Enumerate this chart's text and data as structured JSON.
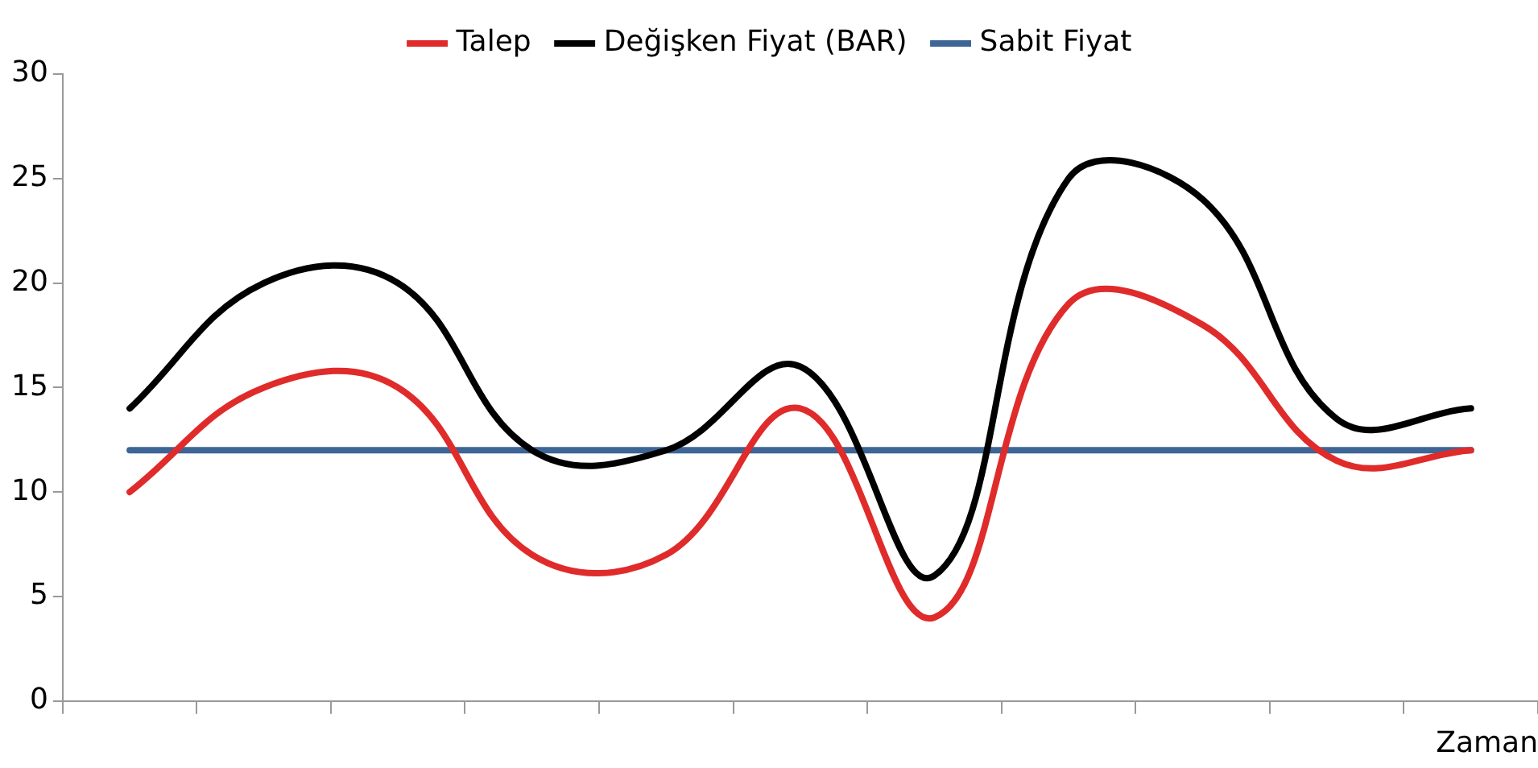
{
  "chart_data": {
    "type": "line",
    "xlabel": "Zaman",
    "categories": [
      null,
      null,
      null,
      null,
      null,
      null,
      null,
      null,
      null,
      null,
      null
    ],
    "series": [
      {
        "name": "Talep",
        "color": "#e02b2b",
        "values": [
          10,
          15,
          15,
          7,
          7,
          14,
          4,
          19,
          18,
          11.5,
          12
        ]
      },
      {
        "name": "Değişken Fiyat (BAR)",
        "color": "#000000",
        "values": [
          14,
          20,
          20,
          12,
          12,
          16,
          6,
          25,
          24,
          13.5,
          14
        ]
      },
      {
        "name": "Sabit Fiyat",
        "color": "#3d6596",
        "values": [
          12,
          12,
          12,
          12,
          12,
          12,
          12,
          12,
          12,
          12,
          12
        ]
      }
    ],
    "ylim": [
      0,
      30
    ],
    "yticks": [
      0,
      5,
      10,
      15,
      20,
      25,
      30
    ],
    "grid": false,
    "legend": "top",
    "tick_labels": "y",
    "marker": "none",
    "line_style": "solid"
  }
}
